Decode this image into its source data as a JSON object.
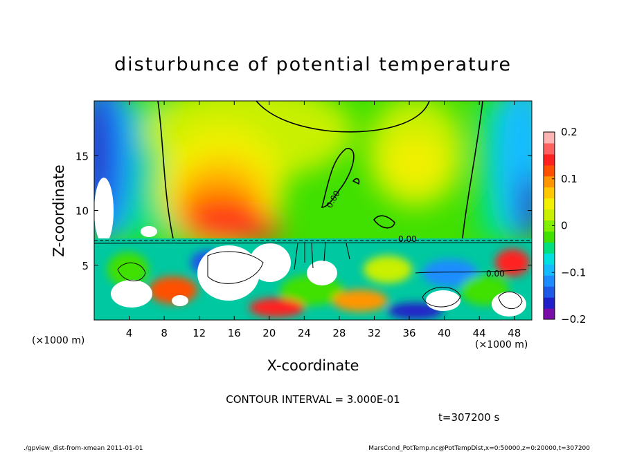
{
  "chart_data": {
    "type": "heatmap",
    "title": "disturbunce of potential temperature",
    "xlabel": "X-coordinate",
    "ylabel": "Z-coordinate",
    "x_unit_label": "(×1000 m)",
    "y_unit_label": "(×1000 m)",
    "xlim": [
      0,
      50
    ],
    "ylim": [
      0,
      20
    ],
    "x_ticks": [
      4,
      8,
      12,
      16,
      20,
      24,
      28,
      32,
      36,
      40,
      44,
      48
    ],
    "y_ticks": [
      5,
      10,
      15
    ],
    "colorbar": {
      "range": [
        -0.2,
        0.2
      ],
      "tick_values": [
        0.2,
        0.1,
        0,
        -0.1,
        -0.2
      ],
      "tick_labels": [
        "0.2",
        "0.1",
        "0",
        "−0.1",
        "−0.2"
      ],
      "colors": [
        "#7a0da8",
        "#2020c8",
        "#1e5ae6",
        "#1e8cff",
        "#14bcff",
        "#00e0e0",
        "#00e080",
        "#40e000",
        "#80f000",
        "#c8f000",
        "#f0f000",
        "#ffc800",
        "#ff9600",
        "#ff5000",
        "#ff2020",
        "#ff6060",
        "#ffb4b4"
      ]
    },
    "contour_labels": [
      "0.00",
      "0.00",
      "0.00"
    ],
    "contour_interval_text": "CONTOUR INTERVAL = 3.000E-01",
    "time_text": "t=307200 s"
  },
  "footer": {
    "left": "./gpview_dist-from-xmean  2011-01-01",
    "right": "MarsCond_PotTemp.nc@PotTempDist,x=0:50000,z=0:20000,t=307200"
  }
}
